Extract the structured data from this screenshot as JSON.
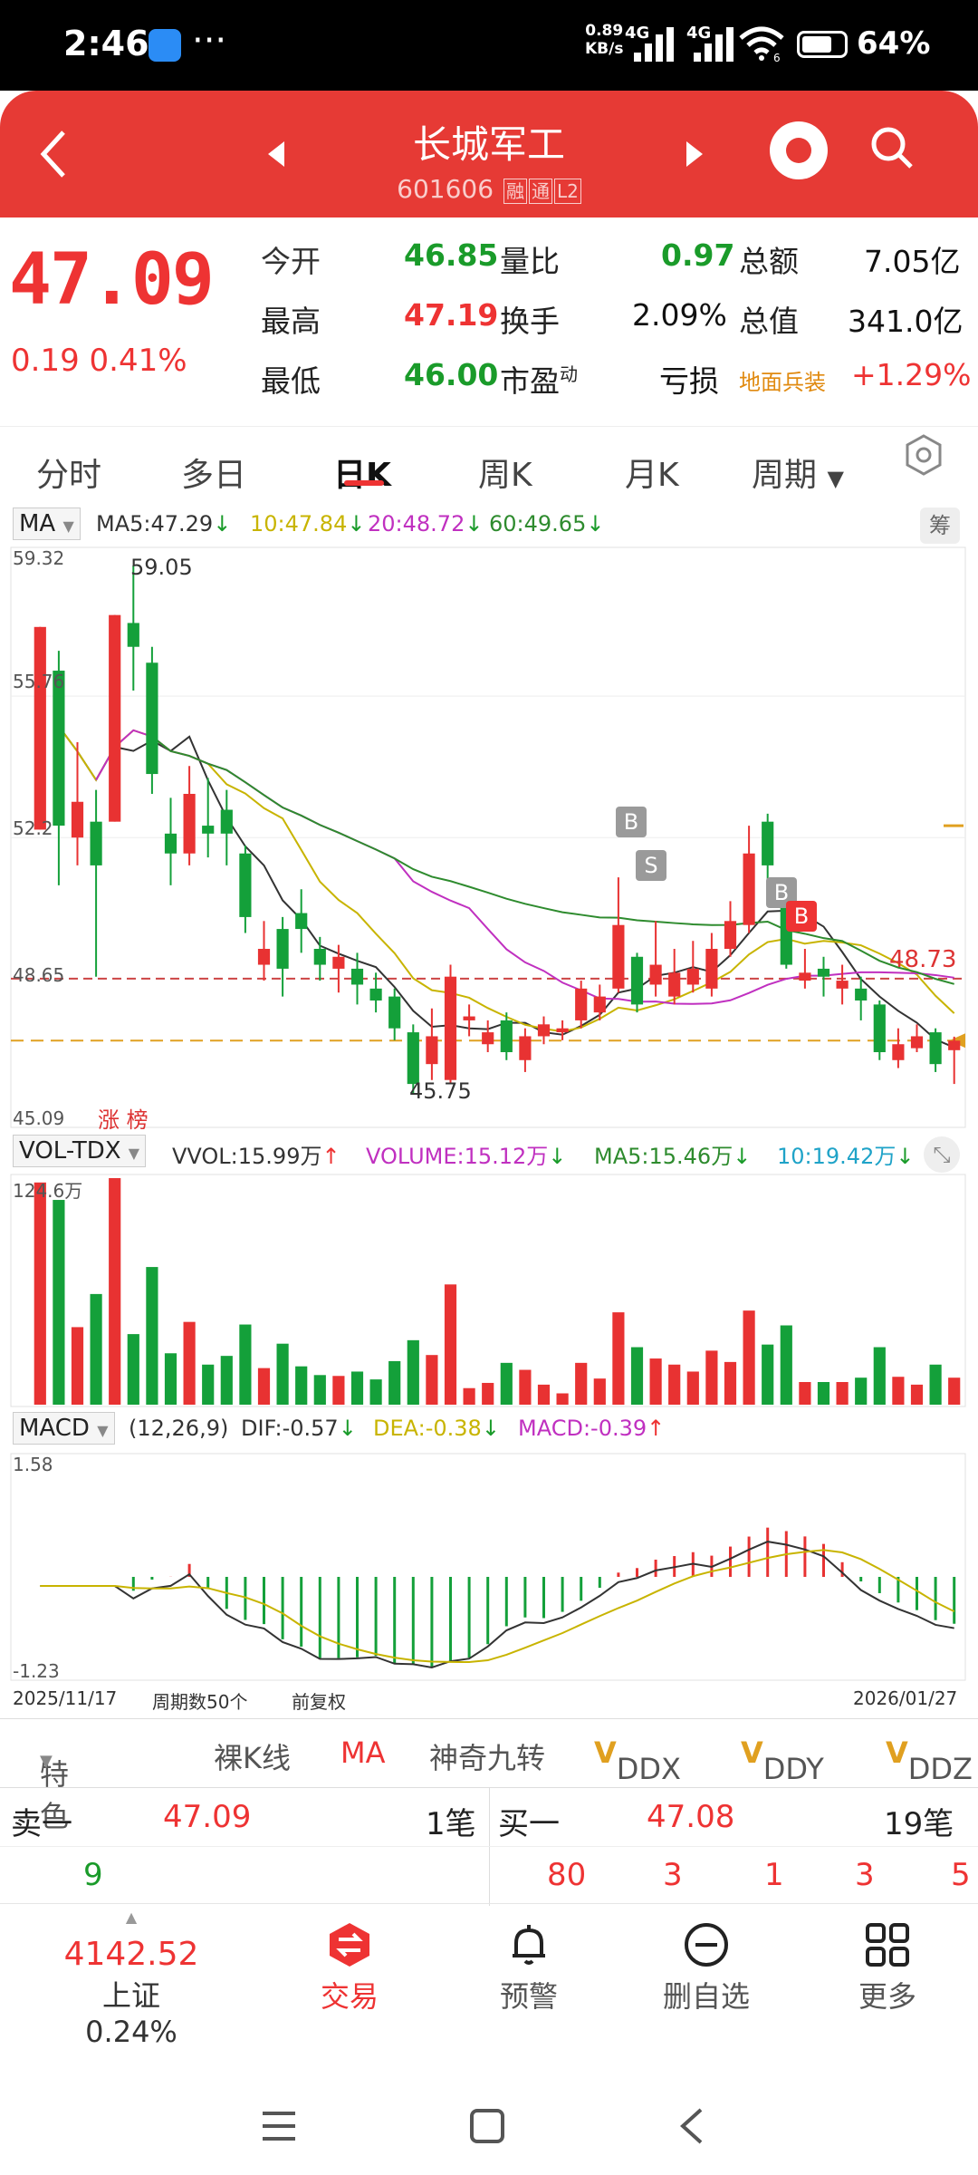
{
  "status_bar": {
    "time": "2:46",
    "net_speed_value": "0.89",
    "net_speed_unit": "KB/s",
    "signal1": "4G",
    "signal2": "4G",
    "wifi_badge": "6",
    "battery_pct": "64%",
    "battery_level": 0.64
  },
  "header": {
    "title": "长城军工",
    "code": "601606",
    "tags": [
      "融",
      "通",
      "L2"
    ]
  },
  "quote": {
    "price": "47.09",
    "change": "0.19 0.41%",
    "rows": [
      {
        "l1": "今开",
        "v1": "46.85",
        "l2": "量比",
        "v2": "0.97",
        "l3": "总额",
        "v3": "7.05亿"
      },
      {
        "l1": "最高",
        "v1": "47.19",
        "l2": "换手",
        "v2": "2.09%",
        "l3": "总值",
        "v3": "341.0亿"
      },
      {
        "l1": "最低",
        "v1": "46.00",
        "l2": "市盈",
        "l2sup": "动",
        "v2": "亏损",
        "l3": "地面兵装",
        "v3": "+1.29%"
      }
    ]
  },
  "tabs": [
    "分时",
    "多日",
    "日K",
    "周K",
    "月K",
    "周期"
  ],
  "active_tab": "日K",
  "kline": {
    "indicator": "MA",
    "ma5": "MA5:47.29",
    "ma10": "10:47.84",
    "ma20": "20:48.72",
    "ma60": "60:49.65",
    "chip_button": "筹",
    "y_labels": [
      "59.32",
      "55.76",
      "52.2",
      "48.65",
      "45.09"
    ],
    "high_label": "59.05",
    "low_label": "45.75",
    "last_ma_label": "48.73",
    "signals": [
      "B",
      "S",
      "B",
      "B"
    ],
    "limit_up_tag": [
      "涨",
      "榜"
    ],
    "colors": {
      "up": "#e83232",
      "down": "#14a03a",
      "ma5": "#333333",
      "ma10": "#c8b400",
      "ma20": "#c030c0",
      "ma60": "#2e8b2e"
    }
  },
  "volume": {
    "indicator": "VOL-TDX",
    "vvol": "VVOL:15.99万",
    "volume": "VOLUME:15.12万",
    "ma5": "MA5:15.46万",
    "ma10": "10:19.42万",
    "y_top": "124.6万"
  },
  "macd": {
    "indicator": "MACD",
    "params": "(12,26,9)",
    "dif": "DIF:-0.57",
    "dea": "DEA:-0.38",
    "macd": "MACD:-0.39",
    "y_top": "1.58",
    "y_bottom": "-1.23",
    "date_start": "2025/11/17",
    "period_count": "周期数50个",
    "adjust": "前复权",
    "date_end": "2026/01/27"
  },
  "chart_data": {
    "type": "candlestick",
    "period": "日K",
    "date_range": [
      "2025/11/17",
      "2026/01/27"
    ],
    "ylim": [
      45.09,
      59.32
    ],
    "candles": [
      {
        "o": 52.4,
        "c": 57.5,
        "h": 57.5,
        "l": 52.4
      },
      {
        "o": 56.4,
        "c": 52.5,
        "h": 56.9,
        "l": 51.0
      },
      {
        "o": 52.2,
        "c": 53.1,
        "h": 54.6,
        "l": 51.5
      },
      {
        "o": 52.6,
        "c": 51.5,
        "h": 53.4,
        "l": 48.7
      },
      {
        "o": 52.6,
        "c": 57.8,
        "h": 57.8,
        "l": 52.6
      },
      {
        "o": 57.6,
        "c": 57.0,
        "h": 59.05,
        "l": 55.9
      },
      {
        "o": 56.6,
        "c": 53.8,
        "h": 57.0,
        "l": 53.3
      },
      {
        "o": 52.3,
        "c": 51.8,
        "h": 53.2,
        "l": 51.0
      },
      {
        "o": 51.8,
        "c": 53.3,
        "h": 54.0,
        "l": 51.5
      },
      {
        "o": 52.5,
        "c": 52.3,
        "h": 53.7,
        "l": 51.7
      },
      {
        "o": 52.9,
        "c": 52.3,
        "h": 53.4,
        "l": 51.5
      },
      {
        "o": 51.8,
        "c": 50.2,
        "h": 52.0,
        "l": 49.8
      },
      {
        "o": 49.0,
        "c": 49.4,
        "h": 50.1,
        "l": 48.6
      },
      {
        "o": 49.9,
        "c": 48.9,
        "h": 50.2,
        "l": 48.2
      },
      {
        "o": 50.3,
        "c": 49.9,
        "h": 50.9,
        "l": 49.3
      },
      {
        "o": 49.4,
        "c": 49.0,
        "h": 49.7,
        "l": 48.6
      },
      {
        "o": 48.9,
        "c": 49.2,
        "h": 49.5,
        "l": 48.3
      },
      {
        "o": 48.9,
        "c": 48.5,
        "h": 49.3,
        "l": 48.0
      },
      {
        "o": 48.4,
        "c": 48.1,
        "h": 48.8,
        "l": 47.8
      },
      {
        "o": 48.2,
        "c": 47.4,
        "h": 48.4,
        "l": 47.1
      },
      {
        "o": 47.3,
        "c": 46.0,
        "h": 47.5,
        "l": 45.75
      },
      {
        "o": 46.5,
        "c": 47.2,
        "h": 47.9,
        "l": 46.1
      },
      {
        "o": 46.1,
        "c": 48.7,
        "h": 49.0,
        "l": 46.0
      },
      {
        "o": 47.6,
        "c": 47.7,
        "h": 48.0,
        "l": 47.2
      },
      {
        "o": 47.0,
        "c": 47.3,
        "h": 47.6,
        "l": 46.8
      },
      {
        "o": 47.6,
        "c": 46.8,
        "h": 47.8,
        "l": 46.6
      },
      {
        "o": 46.6,
        "c": 47.2,
        "h": 47.4,
        "l": 46.3
      },
      {
        "o": 47.2,
        "c": 47.5,
        "h": 47.7,
        "l": 47.0
      },
      {
        "o": 47.3,
        "c": 47.4,
        "h": 47.6,
        "l": 47.1
      },
      {
        "o": 47.6,
        "c": 48.4,
        "h": 48.6,
        "l": 47.4
      },
      {
        "o": 47.8,
        "c": 48.2,
        "h": 48.5,
        "l": 47.6
      },
      {
        "o": 48.4,
        "c": 50.0,
        "h": 51.2,
        "l": 48.3
      },
      {
        "o": 49.2,
        "c": 48.0,
        "h": 49.3,
        "l": 47.8
      },
      {
        "o": 48.5,
        "c": 49.0,
        "h": 50.1,
        "l": 48.2
      },
      {
        "o": 48.2,
        "c": 48.8,
        "h": 49.4,
        "l": 48.0
      },
      {
        "o": 48.5,
        "c": 48.9,
        "h": 49.6,
        "l": 48.3
      },
      {
        "o": 48.4,
        "c": 49.4,
        "h": 49.8,
        "l": 48.2
      },
      {
        "o": 49.4,
        "c": 50.1,
        "h": 50.6,
        "l": 49.2
      },
      {
        "o": 50.0,
        "c": 51.8,
        "h": 52.5,
        "l": 49.8
      },
      {
        "o": 52.6,
        "c": 51.5,
        "h": 52.8,
        "l": 51.0
      },
      {
        "o": 50.7,
        "c": 49.0,
        "h": 50.9,
        "l": 48.9
      },
      {
        "o": 48.6,
        "c": 48.8,
        "h": 49.4,
        "l": 48.4
      },
      {
        "o": 48.9,
        "c": 48.7,
        "h": 49.2,
        "l": 48.2
      },
      {
        "o": 48.4,
        "c": 48.6,
        "h": 49.0,
        "l": 48.0
      },
      {
        "o": 48.4,
        "c": 48.1,
        "h": 48.7,
        "l": 47.6
      },
      {
        "o": 48.0,
        "c": 46.8,
        "h": 48.1,
        "l": 46.6
      },
      {
        "o": 46.6,
        "c": 47.0,
        "h": 47.4,
        "l": 46.4
      },
      {
        "o": 46.9,
        "c": 47.2,
        "h": 47.5,
        "l": 46.8
      },
      {
        "o": 47.3,
        "c": 46.5,
        "h": 47.4,
        "l": 46.3
      },
      {
        "o": 46.85,
        "c": 47.09,
        "h": 47.19,
        "l": 46.0
      }
    ]
  },
  "toolbar": {
    "items": [
      "特色",
      "裸K线",
      "MA",
      "神奇九转",
      "DDX",
      "DDY",
      "DDZ"
    ]
  },
  "orderbook": {
    "sell_label": "卖一",
    "sell_price": "47.09",
    "sell_count": "1笔",
    "buy_label": "买一",
    "buy_price": "47.08",
    "buy_count": "19笔",
    "sell_queue": [
      "9"
    ],
    "buy_queue": [
      "80",
      "3",
      "1",
      "3",
      "5"
    ]
  },
  "bottom_nav": {
    "index_value": "4142.52",
    "index_label": "上证 0.24%",
    "trade": "交易",
    "alert": "预警",
    "remove": "删自选",
    "more": "更多"
  }
}
